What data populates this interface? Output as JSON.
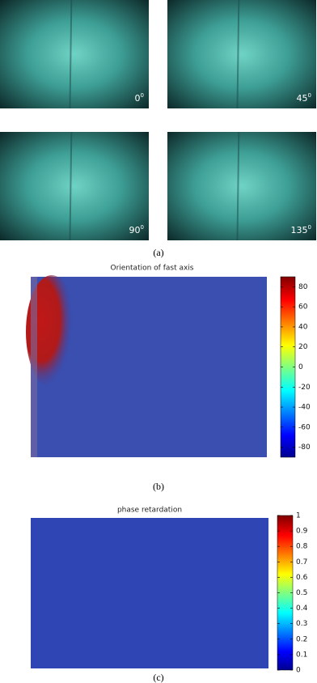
{
  "panel_a": {
    "images": [
      {
        "label": "0",
        "sup": "0"
      },
      {
        "label": "45",
        "sup": "0"
      },
      {
        "label": "90",
        "sup": "0"
      },
      {
        "label": "135",
        "sup": "0"
      }
    ],
    "caption": "(a)"
  },
  "panel_b": {
    "title": "Orientation of fast axis",
    "caption": "(b)",
    "colorbar": {
      "lim": [
        -90,
        90
      ],
      "ticks": [
        80,
        60,
        40,
        20,
        0,
        -20,
        -40,
        -60,
        -80
      ]
    }
  },
  "panel_c": {
    "title": "phase retardation",
    "caption": "(c)",
    "colorbar": {
      "lim": [
        0,
        1
      ],
      "ticks": [
        1,
        0.9,
        0.8,
        0.7,
        0.6,
        0.5,
        0.4,
        0.3,
        0.2,
        0.1,
        0
      ]
    }
  }
}
